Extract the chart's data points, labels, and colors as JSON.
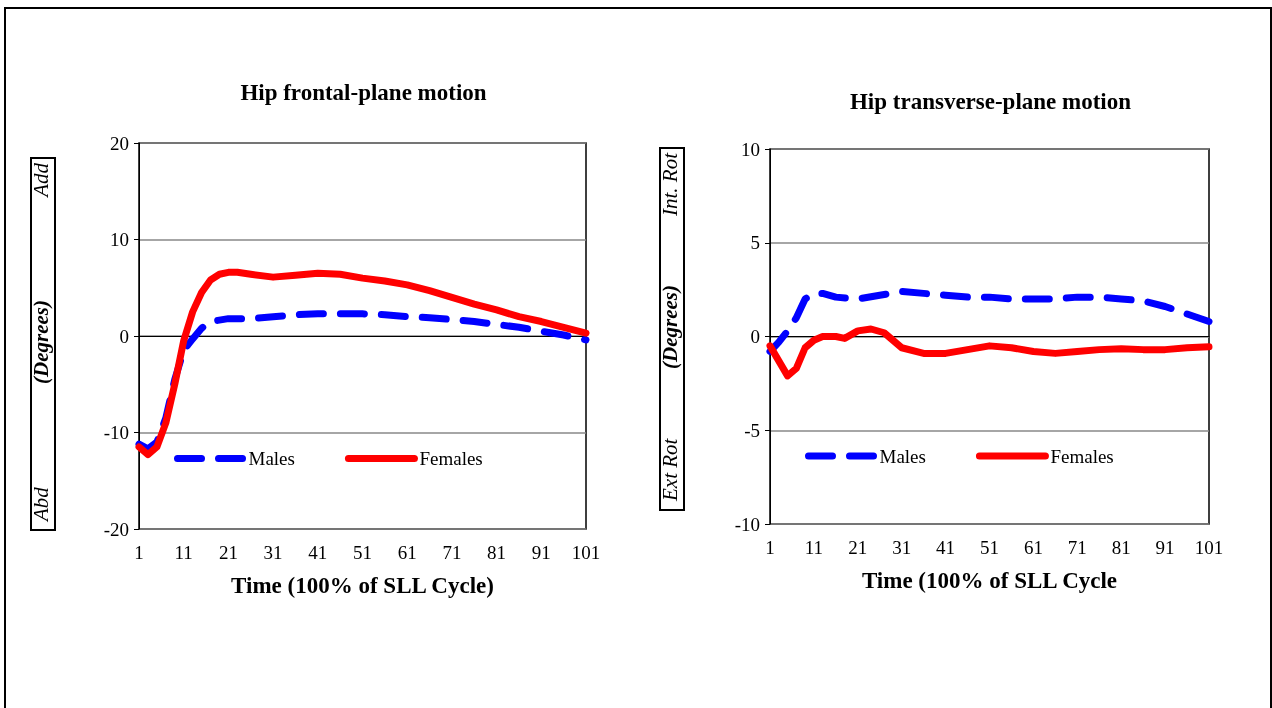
{
  "chart_data": [
    {
      "type": "line",
      "title": "Hip frontal-plane motion",
      "xlabel": "Time (100% of SLL Cycle)",
      "ylabel": "(Degrees)",
      "annotations": [
        "Add",
        "Abd"
      ],
      "xlim": [
        1,
        101
      ],
      "xticks": [
        1,
        11,
        21,
        31,
        41,
        51,
        61,
        71,
        81,
        91,
        101
      ],
      "ylim": [
        -20,
        20
      ],
      "yticks": [
        -20,
        -10,
        0,
        10,
        20
      ],
      "grid": "y",
      "legend": "bottom left",
      "series": [
        {
          "name": "Males",
          "color": "#0000ff",
          "line_style": "dashed",
          "x": [
            1,
            3,
            5,
            7,
            9,
            11,
            13,
            15,
            17,
            21,
            26,
            31,
            36,
            41,
            46,
            51,
            56,
            61,
            66,
            71,
            76,
            81,
            86,
            91,
            96,
            101
          ],
          "values": [
            -11.2,
            -11.7,
            -11,
            -8.5,
            -4.5,
            -1.5,
            -0.3,
            0.8,
            1.5,
            1.8,
            1.8,
            2.0,
            2.2,
            2.3,
            2.3,
            2.3,
            2.2,
            2.0,
            1.9,
            1.7,
            1.5,
            1.2,
            0.9,
            0.5,
            0.1,
            -0.4
          ]
        },
        {
          "name": "Females",
          "color": "#ff0000",
          "line_style": "solid",
          "x": [
            1,
            3,
            5,
            7,
            9,
            11,
            13,
            15,
            17,
            19,
            21,
            23,
            26,
            31,
            36,
            41,
            46,
            51,
            56,
            61,
            66,
            71,
            76,
            81,
            86,
            91,
            96,
            101
          ],
          "values": [
            -11.5,
            -12.3,
            -11.5,
            -9,
            -5,
            -0.5,
            2.5,
            4.5,
            5.8,
            6.4,
            6.6,
            6.6,
            6.4,
            6.1,
            6.3,
            6.5,
            6.4,
            6.0,
            5.7,
            5.3,
            4.7,
            4.0,
            3.3,
            2.7,
            2.0,
            1.5,
            0.9,
            0.3
          ]
        }
      ]
    },
    {
      "type": "line",
      "title": "Hip transverse-plane motion",
      "xlabel": "Time (100% of SLL Cycle",
      "ylabel": "(Degrees)",
      "annotations": [
        "Int. Rot",
        "Ext Rot"
      ],
      "xlim": [
        1,
        101
      ],
      "xticks": [
        1,
        11,
        21,
        31,
        41,
        51,
        61,
        71,
        81,
        91,
        101
      ],
      "ylim": [
        -10,
        10
      ],
      "yticks": [
        -10,
        -5,
        0,
        5,
        10
      ],
      "grid": "y",
      "legend": "bottom left",
      "series": [
        {
          "name": "Males",
          "color": "#0000ff",
          "line_style": "dashed",
          "x": [
            1,
            3,
            5,
            7,
            9,
            11,
            13,
            16,
            21,
            26,
            31,
            36,
            41,
            46,
            51,
            56,
            61,
            66,
            71,
            76,
            81,
            86,
            91,
            96,
            101
          ],
          "values": [
            -0.8,
            -0.3,
            0.3,
            1,
            2,
            2.3,
            2.3,
            2.1,
            2.0,
            2.2,
            2.4,
            2.3,
            2.2,
            2.1,
            2.1,
            2.0,
            2.0,
            2.0,
            2.1,
            2.1,
            2.0,
            1.9,
            1.6,
            1.2,
            0.8
          ]
        },
        {
          "name": "Females",
          "color": "#ff0000",
          "line_style": "solid",
          "x": [
            1,
            3,
            5,
            7,
            9,
            11,
            13,
            16,
            18,
            21,
            24,
            27,
            31,
            36,
            41,
            46,
            51,
            56,
            61,
            66,
            71,
            76,
            81,
            86,
            91,
            96,
            101
          ],
          "values": [
            -0.5,
            -1.3,
            -2.1,
            -1.7,
            -0.6,
            -0.2,
            0,
            0,
            -0.1,
            0.3,
            0.4,
            0.2,
            -0.6,
            -0.9,
            -0.9,
            -0.7,
            -0.5,
            -0.6,
            -0.8,
            -0.9,
            -0.8,
            -0.7,
            -0.65,
            -0.7,
            -0.7,
            -0.6,
            -0.55
          ]
        }
      ]
    }
  ]
}
